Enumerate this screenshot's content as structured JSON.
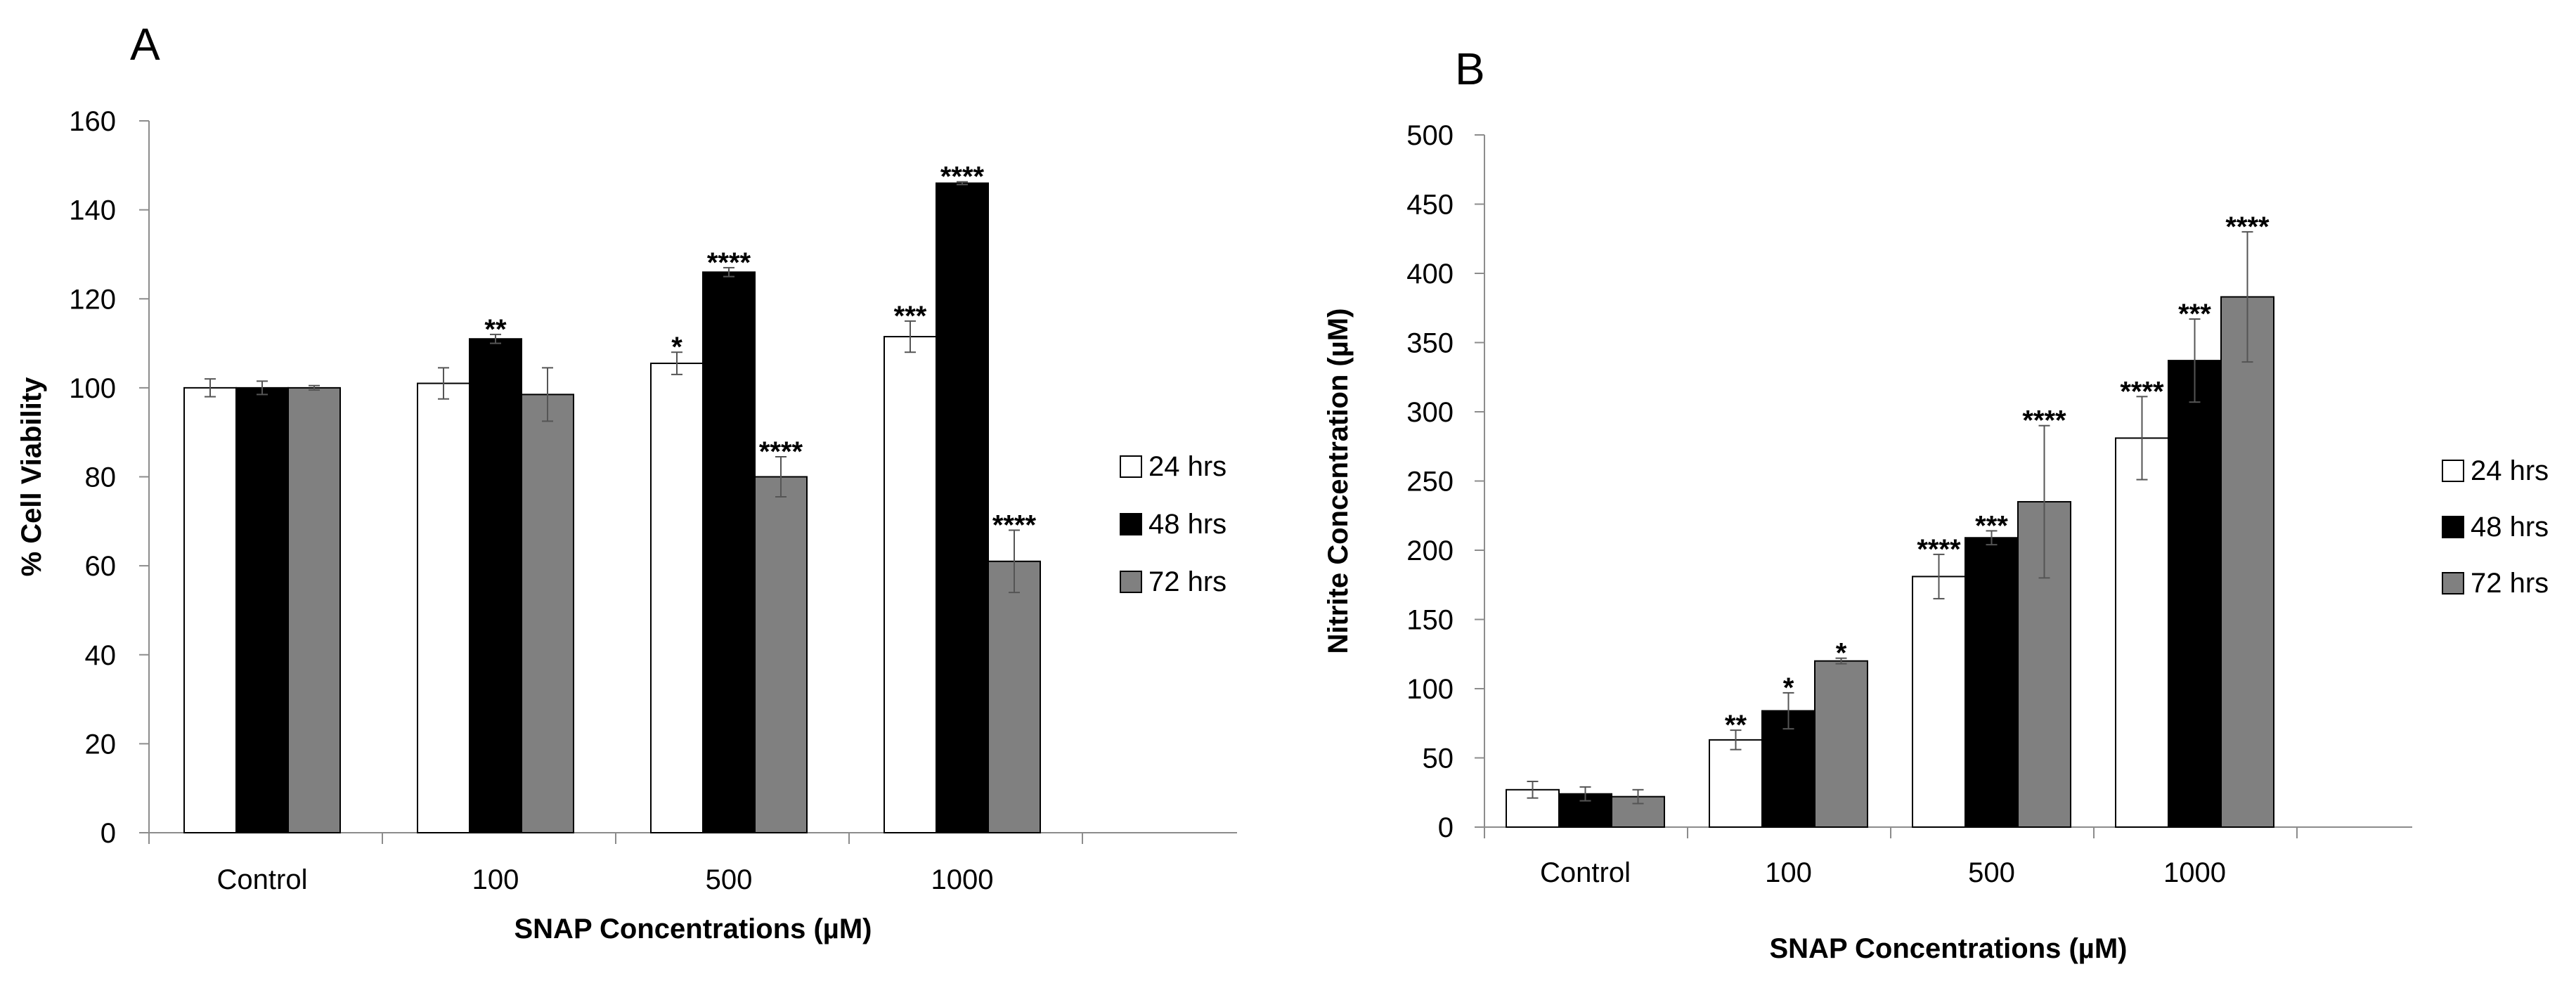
{
  "chart_data": [
    {
      "panel": "A",
      "type": "bar",
      "title": "",
      "categories": [
        "Control",
        "100",
        "500",
        "1000"
      ],
      "xlabel": "SNAP Concentrations (µM)",
      "ylabel": "% Cell Viability",
      "ylim": [
        0,
        160
      ],
      "yticks": [
        "0",
        "20",
        "40",
        "60",
        "80",
        "100",
        "120",
        "140",
        "160"
      ],
      "grid": false,
      "legend_position": "right",
      "series": [
        {
          "name": "24 hrs",
          "color": "#ffffff",
          "values": [
            100,
            101,
            105.5,
            111.5
          ],
          "errors": [
            2,
            3.5,
            2.5,
            3.5
          ],
          "significance": [
            "",
            "",
            "*",
            "***"
          ]
        },
        {
          "name": "48 hrs",
          "color": "#000000",
          "values": [
            100,
            111,
            126,
            146
          ],
          "errors": [
            1.5,
            1,
            1,
            0.3
          ],
          "significance": [
            "",
            "**",
            "****",
            "****"
          ]
        },
        {
          "name": "72 hrs",
          "color": "#808080",
          "values": [
            100,
            98.5,
            80,
            61
          ],
          "errors": [
            0.5,
            6,
            4.5,
            7
          ],
          "significance": [
            "",
            "",
            "****",
            "****"
          ]
        }
      ]
    },
    {
      "panel": "B",
      "type": "bar",
      "title": "",
      "categories": [
        "Control",
        "100",
        "500",
        "1000"
      ],
      "xlabel": "SNAP Concentrations (µM)",
      "ylabel": "Nitrite Concentration (µM)",
      "ylim": [
        0,
        500
      ],
      "yticks": [
        "0",
        "50",
        "100",
        "150",
        "200",
        "250",
        "300",
        "350",
        "400",
        "450",
        "500"
      ],
      "grid": false,
      "legend_position": "right",
      "series": [
        {
          "name": "24 hrs",
          "color": "#ffffff",
          "values": [
            27,
            63,
            181,
            281
          ],
          "errors": [
            6,
            7,
            16,
            30
          ],
          "significance": [
            "",
            "**",
            "****",
            "****"
          ]
        },
        {
          "name": "48 hrs",
          "color": "#000000",
          "values": [
            24,
            84,
            209,
            337
          ],
          "errors": [
            5,
            13,
            5,
            30
          ],
          "significance": [
            "",
            "*",
            "***",
            "***"
          ]
        },
        {
          "name": "72 hrs",
          "color": "#808080",
          "values": [
            22,
            120,
            235,
            383
          ],
          "errors": [
            5,
            2,
            55,
            47
          ],
          "significance": [
            "",
            "*",
            "****",
            "****"
          ]
        }
      ]
    }
  ]
}
